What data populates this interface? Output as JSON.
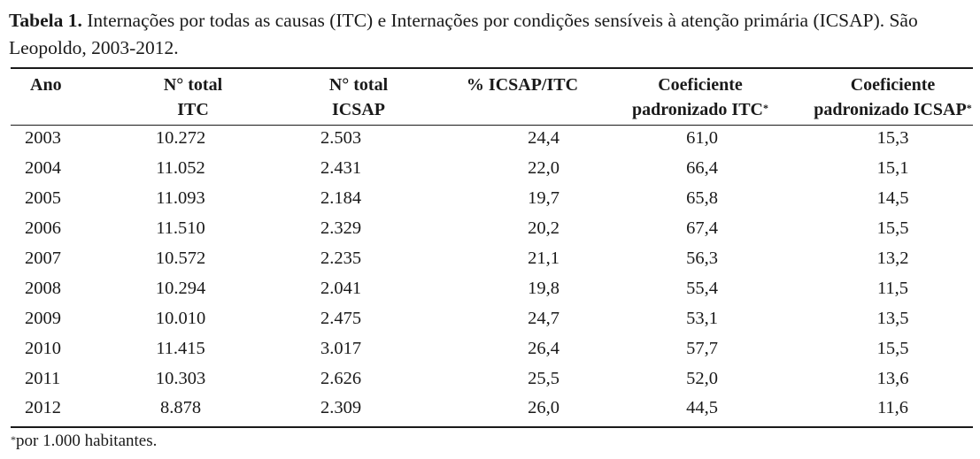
{
  "caption": {
    "label": "Tabela 1.",
    "text": "Internações por todas as causas (ITC) e Internações por condições sensíveis à atenção primária (ICSAP). São Leopoldo, 2003-2012."
  },
  "table": {
    "headers": [
      {
        "line1": "Ano",
        "line2": "",
        "sup": ""
      },
      {
        "line1": "N° total",
        "line2": "ITC",
        "sup": ""
      },
      {
        "line1": "N° total",
        "line2": "ICSAP",
        "sup": ""
      },
      {
        "line1": "% ICSAP/ITC",
        "line2": "",
        "sup": ""
      },
      {
        "line1": "Coeficiente",
        "line2": "padronizado ITC",
        "sup": "*"
      },
      {
        "line1": "Coeficiente",
        "line2": "padronizado ICSAP",
        "sup": "*"
      }
    ],
    "rows": [
      [
        "2003",
        "10.272",
        "2.503",
        "24,4",
        "61,0",
        "15,3"
      ],
      [
        "2004",
        "11.052",
        "2.431",
        "22,0",
        "66,4",
        "15,1"
      ],
      [
        "2005",
        "11.093",
        "2.184",
        "19,7",
        "65,8",
        "14,5"
      ],
      [
        "2006",
        "11.510",
        "2.329",
        "20,2",
        "67,4",
        "15,5"
      ],
      [
        "2007",
        "10.572",
        "2.235",
        "21,1",
        "56,3",
        "13,2"
      ],
      [
        "2008",
        "10.294",
        "2.041",
        "19,8",
        "55,4",
        "11,5"
      ],
      [
        "2009",
        "10.010",
        "2.475",
        "24,7",
        "53,1",
        "13,5"
      ],
      [
        "2010",
        "11.415",
        "3.017",
        "26,4",
        "57,7",
        "15,5"
      ],
      [
        "2011",
        "10.303",
        "2.626",
        "25,5",
        "52,0",
        "13,6"
      ],
      [
        "2012",
        "8.878",
        "2.309",
        "26,0",
        "44,5",
        "11,6"
      ]
    ]
  },
  "footnote": {
    "mark": "*",
    "text": "por 1.000 habitantes."
  }
}
